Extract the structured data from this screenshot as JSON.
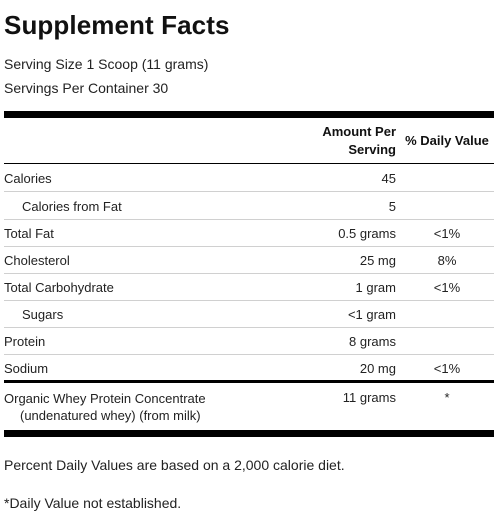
{
  "panel": {
    "title": "Supplement Facts",
    "serving_size": "Serving Size 1 Scoop (11 grams)",
    "servings_per_container": "Servings Per Container 30"
  },
  "table": {
    "headers": {
      "amount_line1": "Amount Per",
      "amount_line2": "Serving",
      "daily_value": "% Daily Value"
    },
    "rows": [
      {
        "label": "Calories",
        "amount": "45",
        "dv": ""
      },
      {
        "label": "Calories from Fat",
        "amount": "5",
        "dv": ""
      },
      {
        "label": "Total Fat",
        "amount": "0.5 grams",
        "dv": "<1%"
      },
      {
        "label": "Cholesterol",
        "amount": "25 mg",
        "dv": "8%"
      },
      {
        "label": "Total Carbohydrate",
        "amount": "1 gram",
        "dv": "<1%"
      },
      {
        "label": "Sugars",
        "amount": "<1 gram",
        "dv": ""
      },
      {
        "label": "Protein",
        "amount": "8 grams",
        "dv": ""
      },
      {
        "label": "Sodium",
        "amount": "20 mg",
        "dv": "<1%"
      }
    ],
    "ingredient": {
      "label_line1": "Organic Whey Protein Concentrate",
      "label_line2": "(undenatured whey) (from milk)",
      "amount": "11 grams",
      "dv": "*"
    }
  },
  "footnotes": {
    "daily_values": "Percent Daily Values are based on a 2,000 calorie diet.",
    "not_established": "*Daily Value not established."
  }
}
